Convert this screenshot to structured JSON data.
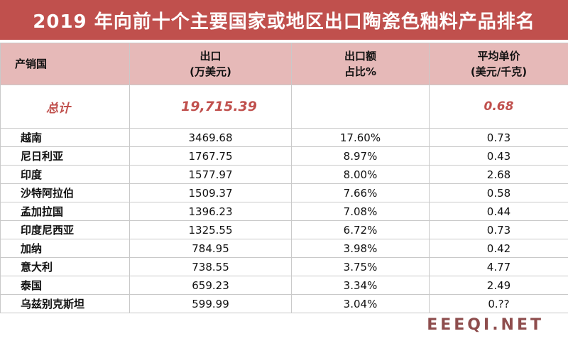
{
  "title": "2019 年向前十个主要国家或地区出口陶瓷色釉料产品排名",
  "headers": {
    "country": "产销国",
    "export_line1": "出口",
    "export_line2": "(万美元)",
    "share_line1": "出口额",
    "share_line2": "占比%",
    "price_line1": "平均单价",
    "price_line2": "(美元/千克)"
  },
  "total": {
    "label": "总计",
    "export": "19,715.39",
    "share": "",
    "price": "0.68"
  },
  "rows": [
    {
      "country": "越南",
      "export": "3469.68",
      "share": "17.60%",
      "price": "0.73"
    },
    {
      "country": "尼日利亚",
      "export": "1767.75",
      "share": "8.97%",
      "price": "0.43"
    },
    {
      "country": "印度",
      "export": "1577.97",
      "share": "8.00%",
      "price": "2.68"
    },
    {
      "country": "沙特阿拉伯",
      "export": "1509.37",
      "share": "7.66%",
      "price": "0.58"
    },
    {
      "country": "孟加拉国",
      "export": "1396.23",
      "share": "7.08%",
      "price": "0.44"
    },
    {
      "country": "印度尼西亚",
      "export": "1325.55",
      "share": "6.72%",
      "price": "0.73"
    },
    {
      "country": "加纳",
      "export": "784.95",
      "share": "3.98%",
      "price": "0.42"
    },
    {
      "country": "意大利",
      "export": "738.55",
      "share": "3.75%",
      "price": "4.77"
    },
    {
      "country": "泰国",
      "export": "659.23",
      "share": "3.34%",
      "price": "2.49"
    },
    {
      "country": "乌兹别克斯坦",
      "export": "599.99",
      "share": "3.04%",
      "price": "0.??"
    }
  ],
  "watermark": "EEEQI.NET",
  "colors": {
    "title_bg": "#c0504d",
    "header_bg": "#e6b9b8",
    "total_text": "#c0504d"
  }
}
